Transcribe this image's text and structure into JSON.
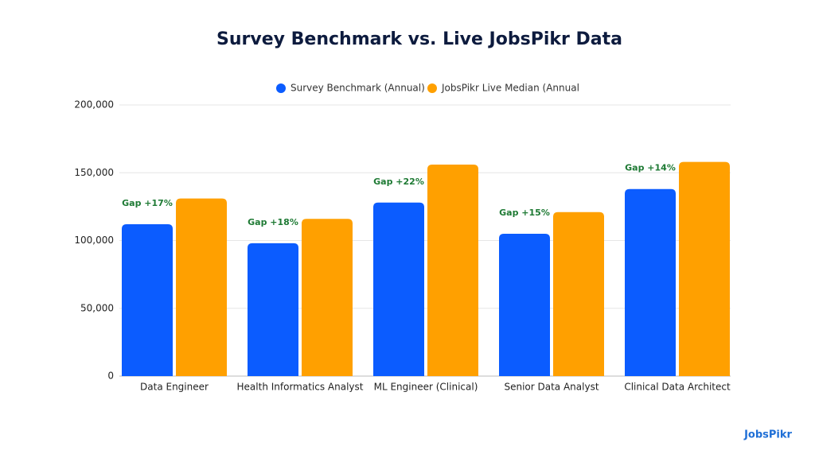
{
  "chart_data": {
    "type": "bar",
    "title": "Survey Benchmark vs. Live JobsPikr Data",
    "categories": [
      "Data Engineer",
      "Health Informatics Analyst",
      "ML Engineer (Clinical)",
      "Senior Data Analyst",
      "Clinical Data Architect"
    ],
    "series": [
      {
        "name": "Survey Benchmark (Annual)",
        "color": "#0b5cff",
        "values": [
          112000,
          98000,
          128000,
          105000,
          138000
        ]
      },
      {
        "name": "JobsPikr Live Median (Annual",
        "color": "#ffa000",
        "values": [
          131000,
          116000,
          156000,
          121000,
          158000
        ]
      }
    ],
    "annotations": [
      "Gap +17%",
      "Gap +18%",
      "Gap +22%",
      "Gap +15%",
      "Gap +14%"
    ],
    "ylim": [
      0,
      200000
    ],
    "yticks": [
      0,
      {
        "value": 50000,
        "label": "50,000"
      },
      {
        "value": 100000,
        "label": "100,000"
      },
      {
        "value": 150000,
        "label": "150,000"
      },
      {
        "value": 200000,
        "label": "200,000"
      }
    ],
    "grid": true,
    "logo": "JobsPikr"
  }
}
